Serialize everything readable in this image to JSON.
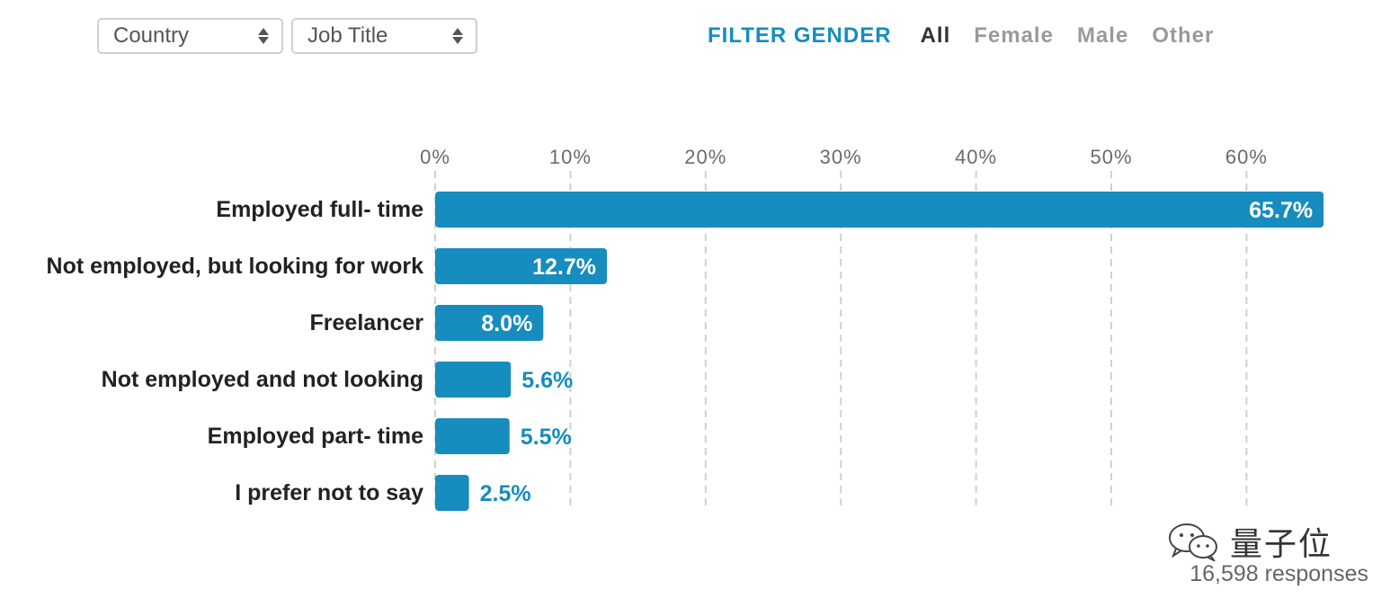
{
  "filters": {
    "country_label": "Country",
    "job_title_label": "Job Title"
  },
  "gender_filter": {
    "title": "FILTER GENDER",
    "options": [
      "All",
      "Female",
      "Male",
      "Other"
    ],
    "selected": "All"
  },
  "colors": {
    "bar": "#178cbe",
    "accent": "#178cbe",
    "grid": "#d0d0d0"
  },
  "chart_data": {
    "type": "bar",
    "orientation": "horizontal",
    "categories": [
      "Employed full- time",
      "Not employed, but looking for work",
      "Freelancer",
      "Not employed and not looking",
      "Employed part- time",
      "I prefer not to say"
    ],
    "values": [
      65.7,
      12.7,
      8.0,
      5.6,
      5.5,
      2.5
    ],
    "value_labels": [
      "65.7%",
      "12.7%",
      "8.0%",
      "5.6%",
      "5.5%",
      "2.5%"
    ],
    "x_ticks": [
      0,
      10,
      20,
      30,
      40,
      50,
      60
    ],
    "x_tick_labels": [
      "0%",
      "10%",
      "20%",
      "30%",
      "40%",
      "50%",
      "60%"
    ],
    "xlim": [
      0,
      65.7
    ],
    "grid": true,
    "title": "",
    "xlabel": "",
    "ylabel": ""
  },
  "watermark": {
    "text": "量子位",
    "icon": "wechat-icon"
  },
  "footer": {
    "responses": "16,598 responses"
  }
}
